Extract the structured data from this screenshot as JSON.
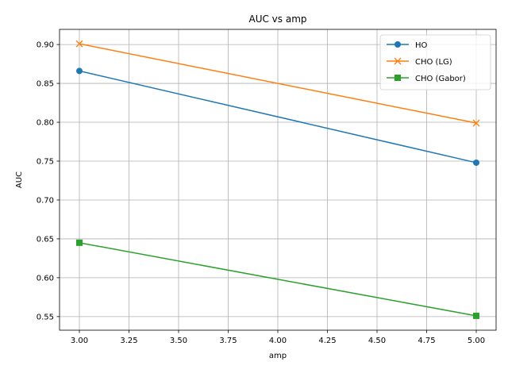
{
  "chart_data": {
    "type": "line",
    "title": "AUC vs amp",
    "xlabel": "amp",
    "ylabel": "AUC",
    "xlim": [
      2.9,
      5.1
    ],
    "ylim": [
      0.5325,
      0.9195
    ],
    "x_ticks": [
      3.0,
      3.25,
      3.5,
      3.75,
      4.0,
      4.25,
      4.5,
      4.75,
      5.0
    ],
    "x_tick_labels": [
      "3.00",
      "3.25",
      "3.50",
      "3.75",
      "4.00",
      "4.25",
      "4.50",
      "4.75",
      "5.00"
    ],
    "y_ticks": [
      0.55,
      0.6,
      0.65,
      0.7,
      0.75,
      0.8,
      0.85,
      0.9
    ],
    "y_tick_labels": [
      "0.55",
      "0.60",
      "0.65",
      "0.70",
      "0.75",
      "0.80",
      "0.85",
      "0.90"
    ],
    "grid": true,
    "legend_position": "top-right",
    "x": [
      3.0,
      5.0
    ],
    "series": [
      {
        "name": "HO",
        "values": [
          0.866,
          0.748
        ],
        "color": "#1f77b4",
        "marker": "circle"
      },
      {
        "name": "CHO (LG)",
        "values": [
          0.901,
          0.799
        ],
        "color": "#ff7f0e",
        "marker": "x"
      },
      {
        "name": "CHO (Gabor)",
        "values": [
          0.645,
          0.551
        ],
        "color": "#2ca02c",
        "marker": "square"
      }
    ]
  }
}
